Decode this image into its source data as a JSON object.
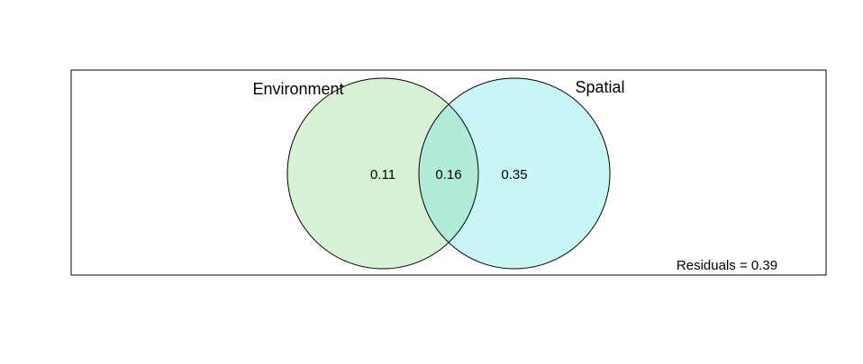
{
  "diagram": {
    "type": "venn",
    "sets": [
      {
        "name": "Environment",
        "fill": "#d8f2d8",
        "stroke": "#000000"
      },
      {
        "name": "Spatial",
        "fill": "#c9f6f6",
        "stroke": "#000000"
      }
    ],
    "overlap_fill": "#b0ecd8",
    "regions": {
      "environment_only": "0.11",
      "shared": "0.16",
      "spatial_only": "0.35"
    },
    "residuals_label": "Residuals = 0.39",
    "frame_color": "#000000"
  }
}
